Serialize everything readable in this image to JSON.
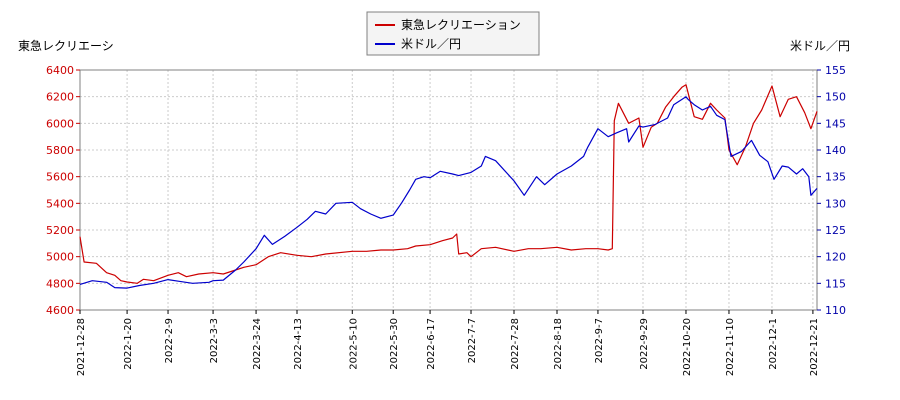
{
  "chart_data": {
    "type": "line",
    "title": "",
    "y_left_label": "東急レクリエーシ",
    "y_right_label": "米ドル／円",
    "y_left_range": [
      4600,
      6400
    ],
    "y_left_ticks": [
      4600,
      4800,
      5000,
      5200,
      5400,
      5600,
      5800,
      6000,
      6200,
      6400
    ],
    "y_right_range": [
      110,
      155
    ],
    "y_right_ticks": [
      110,
      115,
      120,
      125,
      130,
      135,
      140,
      145,
      150,
      155
    ],
    "x_range": [
      "2021-12-28",
      "2022-12-23"
    ],
    "x_ticks": [
      "2021-12-28",
      "2022-1-20",
      "2022-2-9",
      "2022-3-3",
      "2022-3-24",
      "2022-4-13",
      "2022-5-10",
      "2022-5-30",
      "2022-6-17",
      "2022-7-7",
      "2022-7-28",
      "2022-8-18",
      "2022-9-7",
      "2022-9-29",
      "2022-10-20",
      "2022-11-10",
      "2022-12-1",
      "2022-12-21"
    ],
    "grid": true,
    "legend_position": "top-center",
    "series": [
      {
        "name": "東急レクリエーション",
        "axis": "left",
        "color": "#cc0000",
        "points": [
          [
            "2021-12-28",
            5150
          ],
          [
            "2021-12-30",
            4960
          ],
          [
            "2022-1-5",
            4950
          ],
          [
            "2022-1-10",
            4880
          ],
          [
            "2022-1-14",
            4860
          ],
          [
            "2022-1-17",
            4820
          ],
          [
            "2022-1-20",
            4810
          ],
          [
            "2022-1-25",
            4800
          ],
          [
            "2022-1-28",
            4830
          ],
          [
            "2022-2-2",
            4820
          ],
          [
            "2022-2-9",
            4860
          ],
          [
            "2022-2-14",
            4880
          ],
          [
            "2022-2-18",
            4850
          ],
          [
            "2022-2-24",
            4870
          ],
          [
            "2022-3-3",
            4880
          ],
          [
            "2022-3-8",
            4870
          ],
          [
            "2022-3-14",
            4900
          ],
          [
            "2022-3-18",
            4920
          ],
          [
            "2022-3-24",
            4940
          ],
          [
            "2022-3-30",
            5000
          ],
          [
            "2022-4-5",
            5030
          ],
          [
            "2022-4-13",
            5010
          ],
          [
            "2022-4-20",
            5000
          ],
          [
            "2022-4-27",
            5020
          ],
          [
            "2022-5-10",
            5040
          ],
          [
            "2022-5-17",
            5040
          ],
          [
            "2022-5-24",
            5050
          ],
          [
            "2022-5-30",
            5050
          ],
          [
            "2022-6-6",
            5060
          ],
          [
            "2022-6-10",
            5080
          ],
          [
            "2022-6-17",
            5090
          ],
          [
            "2022-6-23",
            5120
          ],
          [
            "2022-6-28",
            5140
          ],
          [
            "2022-6-30",
            5170
          ],
          [
            "2022-7-1",
            5020
          ],
          [
            "2022-7-5",
            5030
          ],
          [
            "2022-7-7",
            5000
          ],
          [
            "2022-7-12",
            5060
          ],
          [
            "2022-7-19",
            5070
          ],
          [
            "2022-7-28",
            5040
          ],
          [
            "2022-8-4",
            5060
          ],
          [
            "2022-8-10",
            5060
          ],
          [
            "2022-8-18",
            5070
          ],
          [
            "2022-8-25",
            5050
          ],
          [
            "2022-9-1",
            5060
          ],
          [
            "2022-9-7",
            5060
          ],
          [
            "2022-9-12",
            5050
          ],
          [
            "2022-9-14",
            5060
          ],
          [
            "2022-9-15",
            6020
          ],
          [
            "2022-9-17",
            6150
          ],
          [
            "2022-9-22",
            6000
          ],
          [
            "2022-9-27",
            6040
          ],
          [
            "2022-9-29",
            5820
          ],
          [
            "2022-10-3",
            5970
          ],
          [
            "2022-10-6",
            6000
          ],
          [
            "2022-10-10",
            6120
          ],
          [
            "2022-10-14",
            6200
          ],
          [
            "2022-10-18",
            6270
          ],
          [
            "2022-10-20",
            6290
          ],
          [
            "2022-10-24",
            6050
          ],
          [
            "2022-10-28",
            6030
          ],
          [
            "2022-11-1",
            6150
          ],
          [
            "2022-11-4",
            6100
          ],
          [
            "2022-11-8",
            6040
          ],
          [
            "2022-11-10",
            5800
          ],
          [
            "2022-11-14",
            5690
          ],
          [
            "2022-11-18",
            5820
          ],
          [
            "2022-11-22",
            6000
          ],
          [
            "2022-11-26",
            6100
          ],
          [
            "2022-12-1",
            6280
          ],
          [
            "2022-12-5",
            6050
          ],
          [
            "2022-12-9",
            6180
          ],
          [
            "2022-12-13",
            6200
          ],
          [
            "2022-12-17",
            6080
          ],
          [
            "2022-12-20",
            5960
          ],
          [
            "2022-12-23",
            6090
          ]
        ]
      },
      {
        "name": "米ドル／円",
        "axis": "right",
        "color": "#0000cc",
        "points": [
          [
            "2021-12-28",
            114.8
          ],
          [
            "2022-1-3",
            115.5
          ],
          [
            "2022-1-10",
            115.2
          ],
          [
            "2022-1-14",
            114.2
          ],
          [
            "2022-1-20",
            114.1
          ],
          [
            "2022-1-26",
            114.6
          ],
          [
            "2022-2-2",
            115.0
          ],
          [
            "2022-2-9",
            115.7
          ],
          [
            "2022-2-14",
            115.4
          ],
          [
            "2022-2-21",
            115.0
          ],
          [
            "2022-3-1",
            115.2
          ],
          [
            "2022-3-3",
            115.5
          ],
          [
            "2022-3-8",
            115.6
          ],
          [
            "2022-3-14",
            117.5
          ],
          [
            "2022-3-18",
            119.0
          ],
          [
            "2022-3-24",
            121.5
          ],
          [
            "2022-3-28",
            124.0
          ],
          [
            "2022-4-1",
            122.3
          ],
          [
            "2022-4-7",
            123.8
          ],
          [
            "2022-4-13",
            125.5
          ],
          [
            "2022-4-18",
            127.0
          ],
          [
            "2022-4-22",
            128.5
          ],
          [
            "2022-4-27",
            128.0
          ],
          [
            "2022-5-2",
            130.0
          ],
          [
            "2022-5-10",
            130.2
          ],
          [
            "2022-5-14",
            129.0
          ],
          [
            "2022-5-19",
            128.0
          ],
          [
            "2022-5-24",
            127.2
          ],
          [
            "2022-5-30",
            127.8
          ],
          [
            "2022-6-3",
            130.0
          ],
          [
            "2022-6-7",
            132.5
          ],
          [
            "2022-6-10",
            134.5
          ],
          [
            "2022-6-14",
            135.0
          ],
          [
            "2022-6-17",
            134.8
          ],
          [
            "2022-6-22",
            136.0
          ],
          [
            "2022-6-28",
            135.5
          ],
          [
            "2022-7-1",
            135.2
          ],
          [
            "2022-7-7",
            135.8
          ],
          [
            "2022-7-12",
            137.0
          ],
          [
            "2022-7-14",
            138.8
          ],
          [
            "2022-7-19",
            138.0
          ],
          [
            "2022-7-28",
            134.2
          ],
          [
            "2022-8-2",
            131.5
          ],
          [
            "2022-8-8",
            135.0
          ],
          [
            "2022-8-12",
            133.5
          ],
          [
            "2022-8-18",
            135.5
          ],
          [
            "2022-8-25",
            137.0
          ],
          [
            "2022-8-31",
            138.8
          ],
          [
            "2022-9-2",
            140.5
          ],
          [
            "2022-9-7",
            144.0
          ],
          [
            "2022-9-12",
            142.5
          ],
          [
            "2022-9-16",
            143.2
          ],
          [
            "2022-9-21",
            144.0
          ],
          [
            "2022-9-22",
            141.5
          ],
          [
            "2022-9-27",
            144.5
          ],
          [
            "2022-9-29",
            144.3
          ],
          [
            "2022-10-5",
            144.8
          ],
          [
            "2022-10-11",
            146.0
          ],
          [
            "2022-10-14",
            148.5
          ],
          [
            "2022-10-20",
            150.0
          ],
          [
            "2022-10-21",
            149.5
          ],
          [
            "2022-10-24",
            148.5
          ],
          [
            "2022-10-28",
            147.5
          ],
          [
            "2022-11-1",
            148.2
          ],
          [
            "2022-11-4",
            146.5
          ],
          [
            "2022-11-8",
            145.7
          ],
          [
            "2022-11-10",
            141.0
          ],
          [
            "2022-11-11",
            138.8
          ],
          [
            "2022-11-16",
            139.7
          ],
          [
            "2022-11-21",
            141.8
          ],
          [
            "2022-11-25",
            139.0
          ],
          [
            "2022-11-29",
            137.8
          ],
          [
            "2022-12-2",
            134.5
          ],
          [
            "2022-12-6",
            137.0
          ],
          [
            "2022-12-9",
            136.8
          ],
          [
            "2022-12-13",
            135.5
          ],
          [
            "2022-12-16",
            136.5
          ],
          [
            "2022-12-19",
            135.0
          ],
          [
            "2022-12-20",
            131.5
          ],
          [
            "2022-12-23",
            132.8
          ]
        ]
      }
    ]
  }
}
